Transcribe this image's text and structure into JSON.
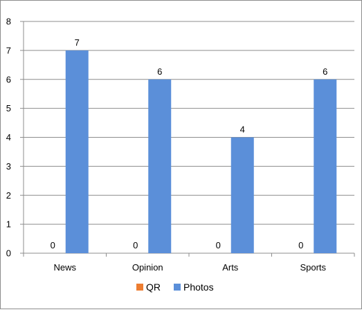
{
  "chart_data": {
    "type": "bar",
    "title": "",
    "xlabel": "",
    "ylabel": "",
    "ylim": [
      0,
      8
    ],
    "yticks": [
      "0",
      "1",
      "2",
      "3",
      "4",
      "5",
      "6",
      "7",
      "8"
    ],
    "categories": [
      "News",
      "Opinion",
      "Arts",
      "Sports"
    ],
    "series": [
      {
        "name": "QR",
        "values": [
          0,
          0,
          0,
          0
        ],
        "color": "#ED7D31"
      },
      {
        "name": "Photos",
        "values": [
          7,
          6,
          4,
          6
        ],
        "color": "#5B8FD9"
      }
    ],
    "data_labels": true,
    "grid": true,
    "legend": "bottom"
  }
}
